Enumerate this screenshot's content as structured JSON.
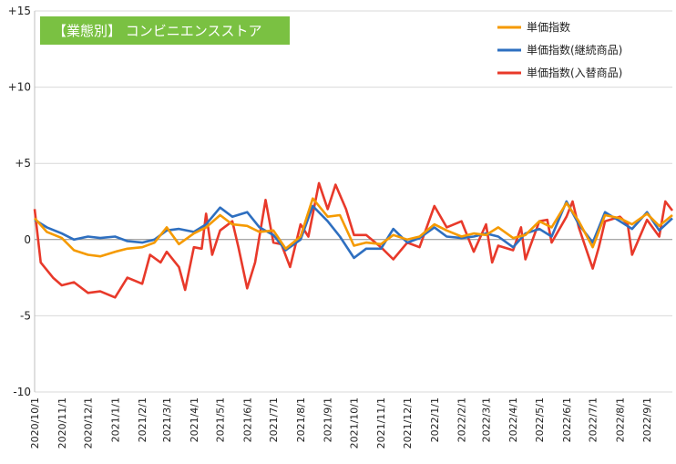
{
  "chart_data": {
    "type": "line",
    "title": "【業態別】 コンビニエンスストア",
    "title_bg": "#7ac142",
    "xlabel": "",
    "ylabel": "",
    "ylim": [
      -10,
      15
    ],
    "yticks": [
      -10,
      -5,
      0,
      5,
      10,
      15
    ],
    "ytick_labels": [
      "-10",
      "-5",
      "0",
      "+5",
      "+10",
      "+15"
    ],
    "grid": "horizontal",
    "legend_position": "top-right",
    "x_tick_labels": [
      "2020/10/1",
      "2020/11/1",
      "2020/12/1",
      "2021/1/1",
      "2021/2/1",
      "2021/3/1",
      "2021/4/1",
      "2021/5/1",
      "2021/6/1",
      "2021/7/1",
      "2021/8/1",
      "2021/9/1",
      "2021/10/1",
      "2021/11/1",
      "2021/12/1",
      "2022/1/1",
      "2022/2/1",
      "2022/3/1",
      "2022/4/1",
      "2022/5/1",
      "2022/6/1",
      "2022/7/1",
      "2022/8/1",
      "2022/9/1"
    ],
    "x_start": "2020/10/1",
    "x_end": "2022/9/30",
    "series": [
      {
        "name": "単価指数",
        "color": "#f59a00",
        "points": [
          [
            "2020/10/1",
            1.4
          ],
          [
            "2020/10/15",
            0.5
          ],
          [
            "2020/11/1",
            0.1
          ],
          [
            "2020/11/15",
            -0.7
          ],
          [
            "2020/12/1",
            -1.0
          ],
          [
            "2020/12/15",
            -1.1
          ],
          [
            "2021/1/1",
            -0.8
          ],
          [
            "2021/1/15",
            -0.6
          ],
          [
            "2021/2/1",
            -0.5
          ],
          [
            "2021/2/15",
            -0.2
          ],
          [
            "2021/3/1",
            0.8
          ],
          [
            "2021/3/15",
            -0.3
          ],
          [
            "2021/4/1",
            0.4
          ],
          [
            "2021/4/15",
            0.8
          ],
          [
            "2021/5/1",
            1.6
          ],
          [
            "2021/5/15",
            1.0
          ],
          [
            "2021/6/1",
            0.9
          ],
          [
            "2021/6/15",
            0.5
          ],
          [
            "2021/7/1",
            0.6
          ],
          [
            "2021/7/15",
            -0.6
          ],
          [
            "2021/8/1",
            0.2
          ],
          [
            "2021/8/15",
            2.7
          ],
          [
            "2021/9/1",
            1.5
          ],
          [
            "2021/9/15",
            1.6
          ],
          [
            "2021/10/1",
            -0.4
          ],
          [
            "2021/10/15",
            -0.2
          ],
          [
            "2021/11/1",
            -0.3
          ],
          [
            "2021/11/15",
            0.3
          ],
          [
            "2021/12/1",
            0.0
          ],
          [
            "2021/12/15",
            0.2
          ],
          [
            "2022/1/1",
            1.0
          ],
          [
            "2022/1/15",
            0.6
          ],
          [
            "2022/2/1",
            0.2
          ],
          [
            "2022/2/15",
            0.4
          ],
          [
            "2022/3/1",
            0.3
          ],
          [
            "2022/3/15",
            0.8
          ],
          [
            "2022/4/1",
            0.1
          ],
          [
            "2022/4/15",
            0.3
          ],
          [
            "2022/5/1",
            1.2
          ],
          [
            "2022/5/15",
            0.8
          ],
          [
            "2022/6/1",
            2.4
          ],
          [
            "2022/6/15",
            1.2
          ],
          [
            "2022/7/1",
            -0.5
          ],
          [
            "2022/7/15",
            1.6
          ],
          [
            "2022/8/1",
            1.4
          ],
          [
            "2022/8/15",
            1.0
          ],
          [
            "2022/9/1",
            1.7
          ],
          [
            "2022/9/15",
            0.9
          ],
          [
            "2022/9/30",
            1.6
          ]
        ]
      },
      {
        "name": "単価指数(継続商品)",
        "color": "#2e6fc0",
        "points": [
          [
            "2020/10/1",
            1.3
          ],
          [
            "2020/10/15",
            0.8
          ],
          [
            "2020/11/1",
            0.4
          ],
          [
            "2020/11/15",
            0.0
          ],
          [
            "2020/12/1",
            0.2
          ],
          [
            "2020/12/15",
            0.1
          ],
          [
            "2021/1/1",
            0.2
          ],
          [
            "2021/1/15",
            -0.1
          ],
          [
            "2021/2/1",
            -0.2
          ],
          [
            "2021/2/15",
            0.0
          ],
          [
            "2021/3/1",
            0.6
          ],
          [
            "2021/3/15",
            0.7
          ],
          [
            "2021/4/1",
            0.5
          ],
          [
            "2021/4/15",
            1.0
          ],
          [
            "2021/5/1",
            2.1
          ],
          [
            "2021/5/15",
            1.5
          ],
          [
            "2021/6/1",
            1.8
          ],
          [
            "2021/6/15",
            0.8
          ],
          [
            "2021/7/1",
            0.3
          ],
          [
            "2021/7/15",
            -0.7
          ],
          [
            "2021/8/1",
            0.0
          ],
          [
            "2021/8/15",
            2.2
          ],
          [
            "2021/9/1",
            1.2
          ],
          [
            "2021/9/15",
            0.2
          ],
          [
            "2021/10/1",
            -1.2
          ],
          [
            "2021/10/15",
            -0.6
          ],
          [
            "2021/11/1",
            -0.6
          ],
          [
            "2021/11/15",
            0.7
          ],
          [
            "2021/12/1",
            -0.2
          ],
          [
            "2021/12/15",
            0.1
          ],
          [
            "2022/1/1",
            0.8
          ],
          [
            "2022/1/15",
            0.2
          ],
          [
            "2022/2/1",
            0.1
          ],
          [
            "2022/2/15",
            0.2
          ],
          [
            "2022/3/1",
            0.4
          ],
          [
            "2022/3/15",
            0.2
          ],
          [
            "2022/4/1",
            -0.5
          ],
          [
            "2022/4/15",
            0.4
          ],
          [
            "2022/5/1",
            0.7
          ],
          [
            "2022/5/15",
            0.2
          ],
          [
            "2022/6/1",
            2.5
          ],
          [
            "2022/6/15",
            1.0
          ],
          [
            "2022/7/1",
            -0.2
          ],
          [
            "2022/7/15",
            1.8
          ],
          [
            "2022/8/1",
            1.2
          ],
          [
            "2022/8/15",
            0.7
          ],
          [
            "2022/9/1",
            1.8
          ],
          [
            "2022/9/15",
            0.6
          ],
          [
            "2022/9/30",
            1.4
          ]
        ]
      },
      {
        "name": "単価指数(入替商品)",
        "color": "#e8392a",
        "points": [
          [
            "2020/10/1",
            2.0
          ],
          [
            "2020/10/8",
            -1.5
          ],
          [
            "2020/10/22",
            -2.5
          ],
          [
            "2020/11/1",
            -3.0
          ],
          [
            "2020/11/15",
            -2.8
          ],
          [
            "2020/12/1",
            -3.5
          ],
          [
            "2020/12/15",
            -3.4
          ],
          [
            "2021/1/1",
            -3.8
          ],
          [
            "2021/1/15",
            -2.5
          ],
          [
            "2021/2/1",
            -2.9
          ],
          [
            "2021/2/10",
            -1.0
          ],
          [
            "2021/2/22",
            -1.5
          ],
          [
            "2021/3/1",
            -0.8
          ],
          [
            "2021/3/15",
            -1.8
          ],
          [
            "2021/3/22",
            -3.3
          ],
          [
            "2021/4/1",
            -0.5
          ],
          [
            "2021/4/10",
            -0.6
          ],
          [
            "2021/4/15",
            1.7
          ],
          [
            "2021/4/22",
            -1.0
          ],
          [
            "2021/5/1",
            0.6
          ],
          [
            "2021/5/15",
            1.2
          ],
          [
            "2021/5/22",
            -0.5
          ],
          [
            "2021/6/1",
            -3.2
          ],
          [
            "2021/6/10",
            -1.5
          ],
          [
            "2021/6/22",
            2.6
          ],
          [
            "2021/7/1",
            -0.2
          ],
          [
            "2021/7/10",
            -0.3
          ],
          [
            "2021/7/20",
            -1.8
          ],
          [
            "2021/8/1",
            1.0
          ],
          [
            "2021/8/10",
            0.2
          ],
          [
            "2021/8/22",
            3.7
          ],
          [
            "2021/9/1",
            2.0
          ],
          [
            "2021/9/10",
            3.6
          ],
          [
            "2021/9/22",
            2.0
          ],
          [
            "2021/10/1",
            0.3
          ],
          [
            "2021/10/15",
            0.3
          ],
          [
            "2021/11/1",
            -0.5
          ],
          [
            "2021/11/15",
            -1.3
          ],
          [
            "2021/12/1",
            -0.2
          ],
          [
            "2021/12/15",
            -0.5
          ],
          [
            "2022/1/1",
            2.2
          ],
          [
            "2022/1/15",
            0.8
          ],
          [
            "2022/2/1",
            1.2
          ],
          [
            "2022/2/15",
            -0.8
          ],
          [
            "2022/3/1",
            1.0
          ],
          [
            "2022/3/8",
            -1.5
          ],
          [
            "2022/3/15",
            -0.4
          ],
          [
            "2022/4/1",
            -0.7
          ],
          [
            "2022/4/10",
            0.8
          ],
          [
            "2022/4/15",
            -1.3
          ],
          [
            "2022/5/1",
            1.2
          ],
          [
            "2022/5/10",
            1.3
          ],
          [
            "2022/5/15",
            -0.2
          ],
          [
            "2022/6/1",
            1.5
          ],
          [
            "2022/6/8",
            2.5
          ],
          [
            "2022/6/15",
            0.8
          ],
          [
            "2022/7/1",
            -1.9
          ],
          [
            "2022/7/8",
            -0.5
          ],
          [
            "2022/7/15",
            1.2
          ],
          [
            "2022/8/1",
            1.5
          ],
          [
            "2022/8/10",
            1.0
          ],
          [
            "2022/8/15",
            -1.0
          ],
          [
            "2022/9/1",
            1.3
          ],
          [
            "2022/9/15",
            0.2
          ],
          [
            "2022/9/22",
            2.5
          ],
          [
            "2022/9/30",
            1.9
          ]
        ]
      }
    ]
  }
}
